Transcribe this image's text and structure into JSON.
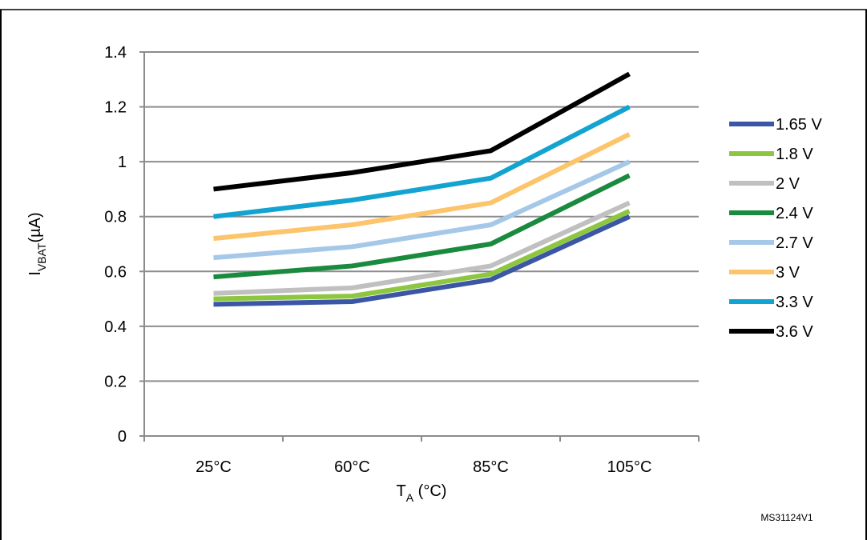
{
  "page": {
    "reference_id": "MS31124V1"
  },
  "colors": {
    "gridline": "#8c8c8c",
    "axis": "#8c8c8c",
    "frame": "#000000"
  },
  "chart_data": {
    "type": "line",
    "title": "",
    "x": [
      "25°C",
      "60°C",
      "85°C",
      "105°C"
    ],
    "xlabel": {
      "main": "T",
      "sub": "A",
      "rest": " (°C)"
    },
    "ylabel": {
      "main": "I",
      "sub": "VBAT",
      "rest": "(µA)"
    },
    "ylim": [
      0,
      1.4
    ],
    "yticks": [
      "0",
      "0.2",
      "0.4",
      "0.6",
      "0.8",
      "1",
      "1.2",
      "1.4"
    ],
    "ytick_values": [
      0,
      0.2,
      0.4,
      0.6,
      0.8,
      1.0,
      1.2,
      1.4
    ],
    "grid": true,
    "legend_position": "right",
    "series": [
      {
        "name": "1.65 V",
        "color": "#3a56a5",
        "values": [
          0.48,
          0.49,
          0.57,
          0.8
        ]
      },
      {
        "name": "1.8 V",
        "color": "#8dc63f",
        "values": [
          0.5,
          0.51,
          0.59,
          0.82
        ]
      },
      {
        "name": "2 V",
        "color": "#c0c0c0",
        "values": [
          0.52,
          0.54,
          0.62,
          0.85
        ]
      },
      {
        "name": "2.4 V",
        "color": "#1a8a3e",
        "values": [
          0.58,
          0.62,
          0.7,
          0.95
        ]
      },
      {
        "name": "2.7 V",
        "color": "#a6c8e8",
        "values": [
          0.65,
          0.69,
          0.77,
          1.0
        ]
      },
      {
        "name": "3 V",
        "color": "#fcc46b",
        "values": [
          0.72,
          0.77,
          0.85,
          1.1
        ]
      },
      {
        "name": "3.3 V",
        "color": "#12a3d0",
        "values": [
          0.8,
          0.86,
          0.94,
          1.2
        ]
      },
      {
        "name": "3.6 V",
        "color": "#000000",
        "values": [
          0.9,
          0.96,
          1.04,
          1.32
        ]
      }
    ]
  }
}
